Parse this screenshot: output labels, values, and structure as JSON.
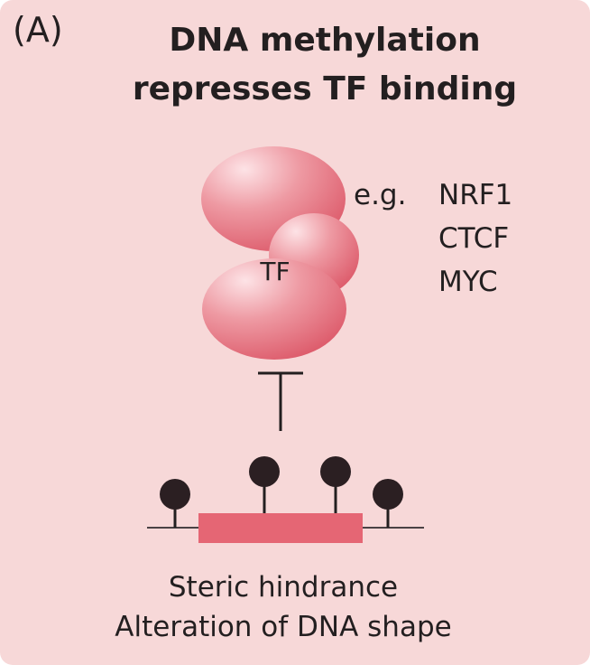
{
  "panel_label": "(A)",
  "title": {
    "line1": "DNA methylation",
    "line2": "represses TF binding"
  },
  "tf": {
    "label": "TF"
  },
  "examples": {
    "prefix": "e.g.",
    "items": [
      "NRF1",
      "CTCF",
      "MYC"
    ]
  },
  "caption": {
    "line1": "Steric hindrance",
    "line2": "Alteration of DNA shape"
  },
  "colors": {
    "background": "#f7d8d8",
    "tf_fill": "#e36f7c",
    "dna_segment": "#e56674",
    "methyl_group": "#2b1f22"
  }
}
